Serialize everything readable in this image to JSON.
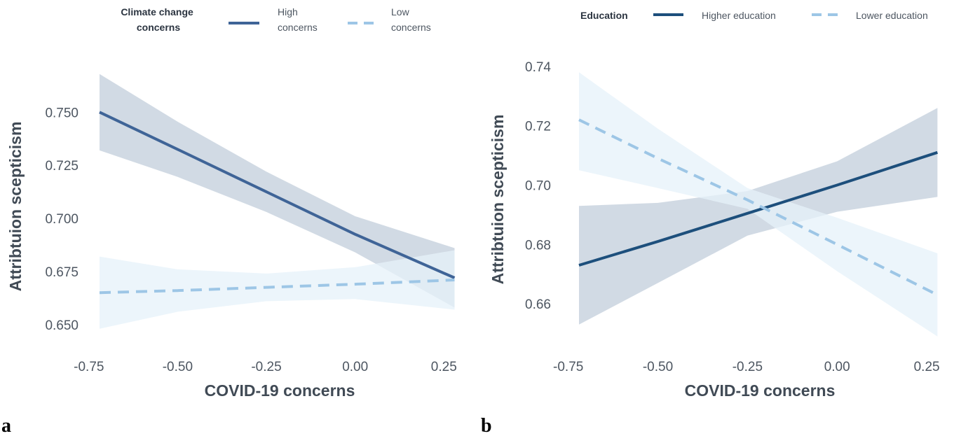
{
  "chart_data": [
    {
      "type": "line",
      "panel_label": "a",
      "xlabel": "COVID-19 concerns",
      "ylabel": "Attribtuion scepticism",
      "xlim": [
        -0.72,
        0.285
      ],
      "ylim": [
        0.643,
        0.7725
      ],
      "xticks": [
        -0.75,
        -0.5,
        -0.25,
        0.0,
        0.25
      ],
      "xtick_labels": [
        "-0.75",
        "-0.50",
        "-0.25",
        "0.00",
        "0.25"
      ],
      "yticks": [
        0.65,
        0.675,
        0.7,
        0.725,
        0.75
      ],
      "ytick_labels": [
        "0.650",
        "0.675",
        "0.700",
        "0.725",
        "0.750"
      ],
      "grid": false,
      "legend": {
        "position": "top",
        "title_lines": [
          "Climate change",
          "concerns"
        ],
        "entries": [
          {
            "label_lines": [
              "High",
              "concerns"
            ],
            "style": "solid",
            "color": "#3f6497"
          },
          {
            "label_lines": [
              "Low",
              "concerns"
            ],
            "style": "dashed",
            "color": "#9dc6e6"
          }
        ]
      },
      "series": [
        {
          "name": "High concerns",
          "color": "#3f6497",
          "band_color": "#c9d3df",
          "line_style": "solid",
          "x": [
            -0.72,
            -0.5,
            -0.25,
            0.0,
            0.28
          ],
          "y": [
            0.75,
            0.7325,
            0.7125,
            0.6925,
            0.672
          ],
          "lower": [
            0.732,
            0.7195,
            0.703,
            0.684,
            0.658
          ],
          "upper": [
            0.768,
            0.7455,
            0.722,
            0.701,
            0.686
          ]
        },
        {
          "name": "Low concerns",
          "color": "#9dc6e6",
          "band_color": "#e6f1fa",
          "line_style": "dashed",
          "x": [
            -0.72,
            -0.5,
            -0.25,
            0.0,
            0.28
          ],
          "y": [
            0.665,
            0.666,
            0.6675,
            0.669,
            0.671
          ],
          "lower": [
            0.648,
            0.656,
            0.661,
            0.662,
            0.657
          ],
          "upper": [
            0.682,
            0.676,
            0.674,
            0.677,
            0.685
          ]
        }
      ]
    },
    {
      "type": "line",
      "panel_label": "b",
      "xlabel": "COVID-19 concerns",
      "ylabel": "Attribtuion scepticism",
      "xlim": [
        -0.72,
        0.285
      ],
      "ylim": [
        0.648,
        0.7435
      ],
      "xticks": [
        -0.75,
        -0.5,
        -0.25,
        0.0,
        0.25
      ],
      "xtick_labels": [
        "-0.75",
        "-0.50",
        "-0.25",
        "0.00",
        "0.25"
      ],
      "yticks": [
        0.66,
        0.68,
        0.7,
        0.72,
        0.74
      ],
      "ytick_labels": [
        "0.66",
        "0.68",
        "0.70",
        "0.72",
        "0.74"
      ],
      "grid": false,
      "legend": {
        "position": "top",
        "title_lines": [
          "Education"
        ],
        "entries": [
          {
            "label_lines": [
              "Higher education"
            ],
            "style": "solid",
            "color": "#1d4f7c"
          },
          {
            "label_lines": [
              "Lower education"
            ],
            "style": "dashed",
            "color": "#9dc6e6"
          }
        ]
      },
      "series": [
        {
          "name": "Higher education",
          "color": "#1d4f7c",
          "band_color": "#c9d3df",
          "line_style": "solid",
          "x": [
            -0.72,
            -0.5,
            -0.25,
            0.0,
            0.28
          ],
          "y": [
            0.673,
            0.681,
            0.6905,
            0.7,
            0.711
          ],
          "lower": [
            0.653,
            0.667,
            0.683,
            0.691,
            0.696
          ],
          "upper": [
            0.693,
            0.694,
            0.698,
            0.708,
            0.726
          ]
        },
        {
          "name": "Lower education",
          "color": "#9dc6e6",
          "band_color": "#e6f1fa",
          "line_style": "dashed",
          "x": [
            -0.72,
            -0.5,
            -0.25,
            0.0,
            0.28
          ],
          "y": [
            0.722,
            0.709,
            0.695,
            0.68,
            0.663
          ],
          "lower": [
            0.705,
            0.699,
            0.692,
            0.671,
            0.649
          ],
          "upper": [
            0.738,
            0.719,
            0.699,
            0.689,
            0.677
          ]
        }
      ]
    }
  ]
}
